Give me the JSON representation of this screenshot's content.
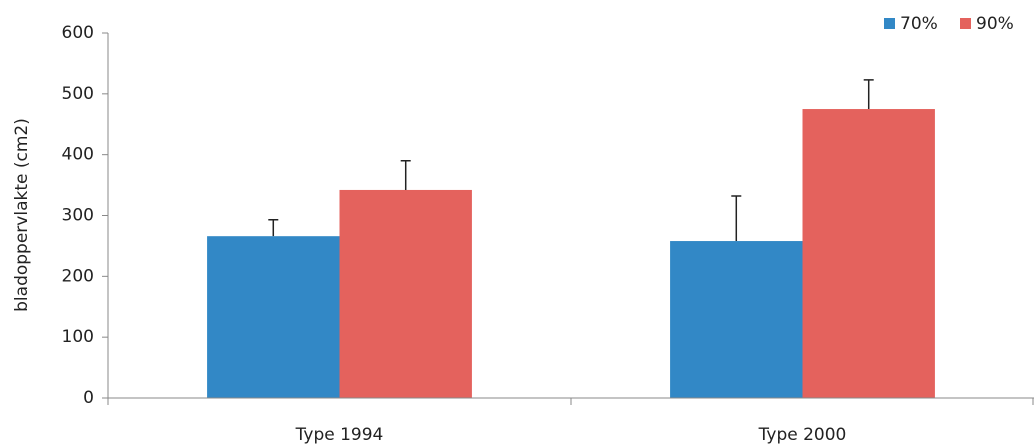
{
  "chart_data": {
    "type": "bar",
    "y_label": "bladoppervlakte (cm2)",
    "categories": [
      "Type 1994",
      "Type 2000"
    ],
    "series": [
      {
        "name": "70%",
        "color": "#3288c6",
        "values": [
          266,
          258
        ],
        "errors": [
          27,
          74
        ]
      },
      {
        "name": "90%",
        "color": "#e4625d",
        "values": [
          342,
          475
        ],
        "errors": [
          48,
          48
        ]
      }
    ],
    "ylim": [
      0,
      600
    ],
    "yticks": [
      0,
      100,
      200,
      300,
      400,
      500,
      600
    ],
    "legend": "top-right"
  }
}
